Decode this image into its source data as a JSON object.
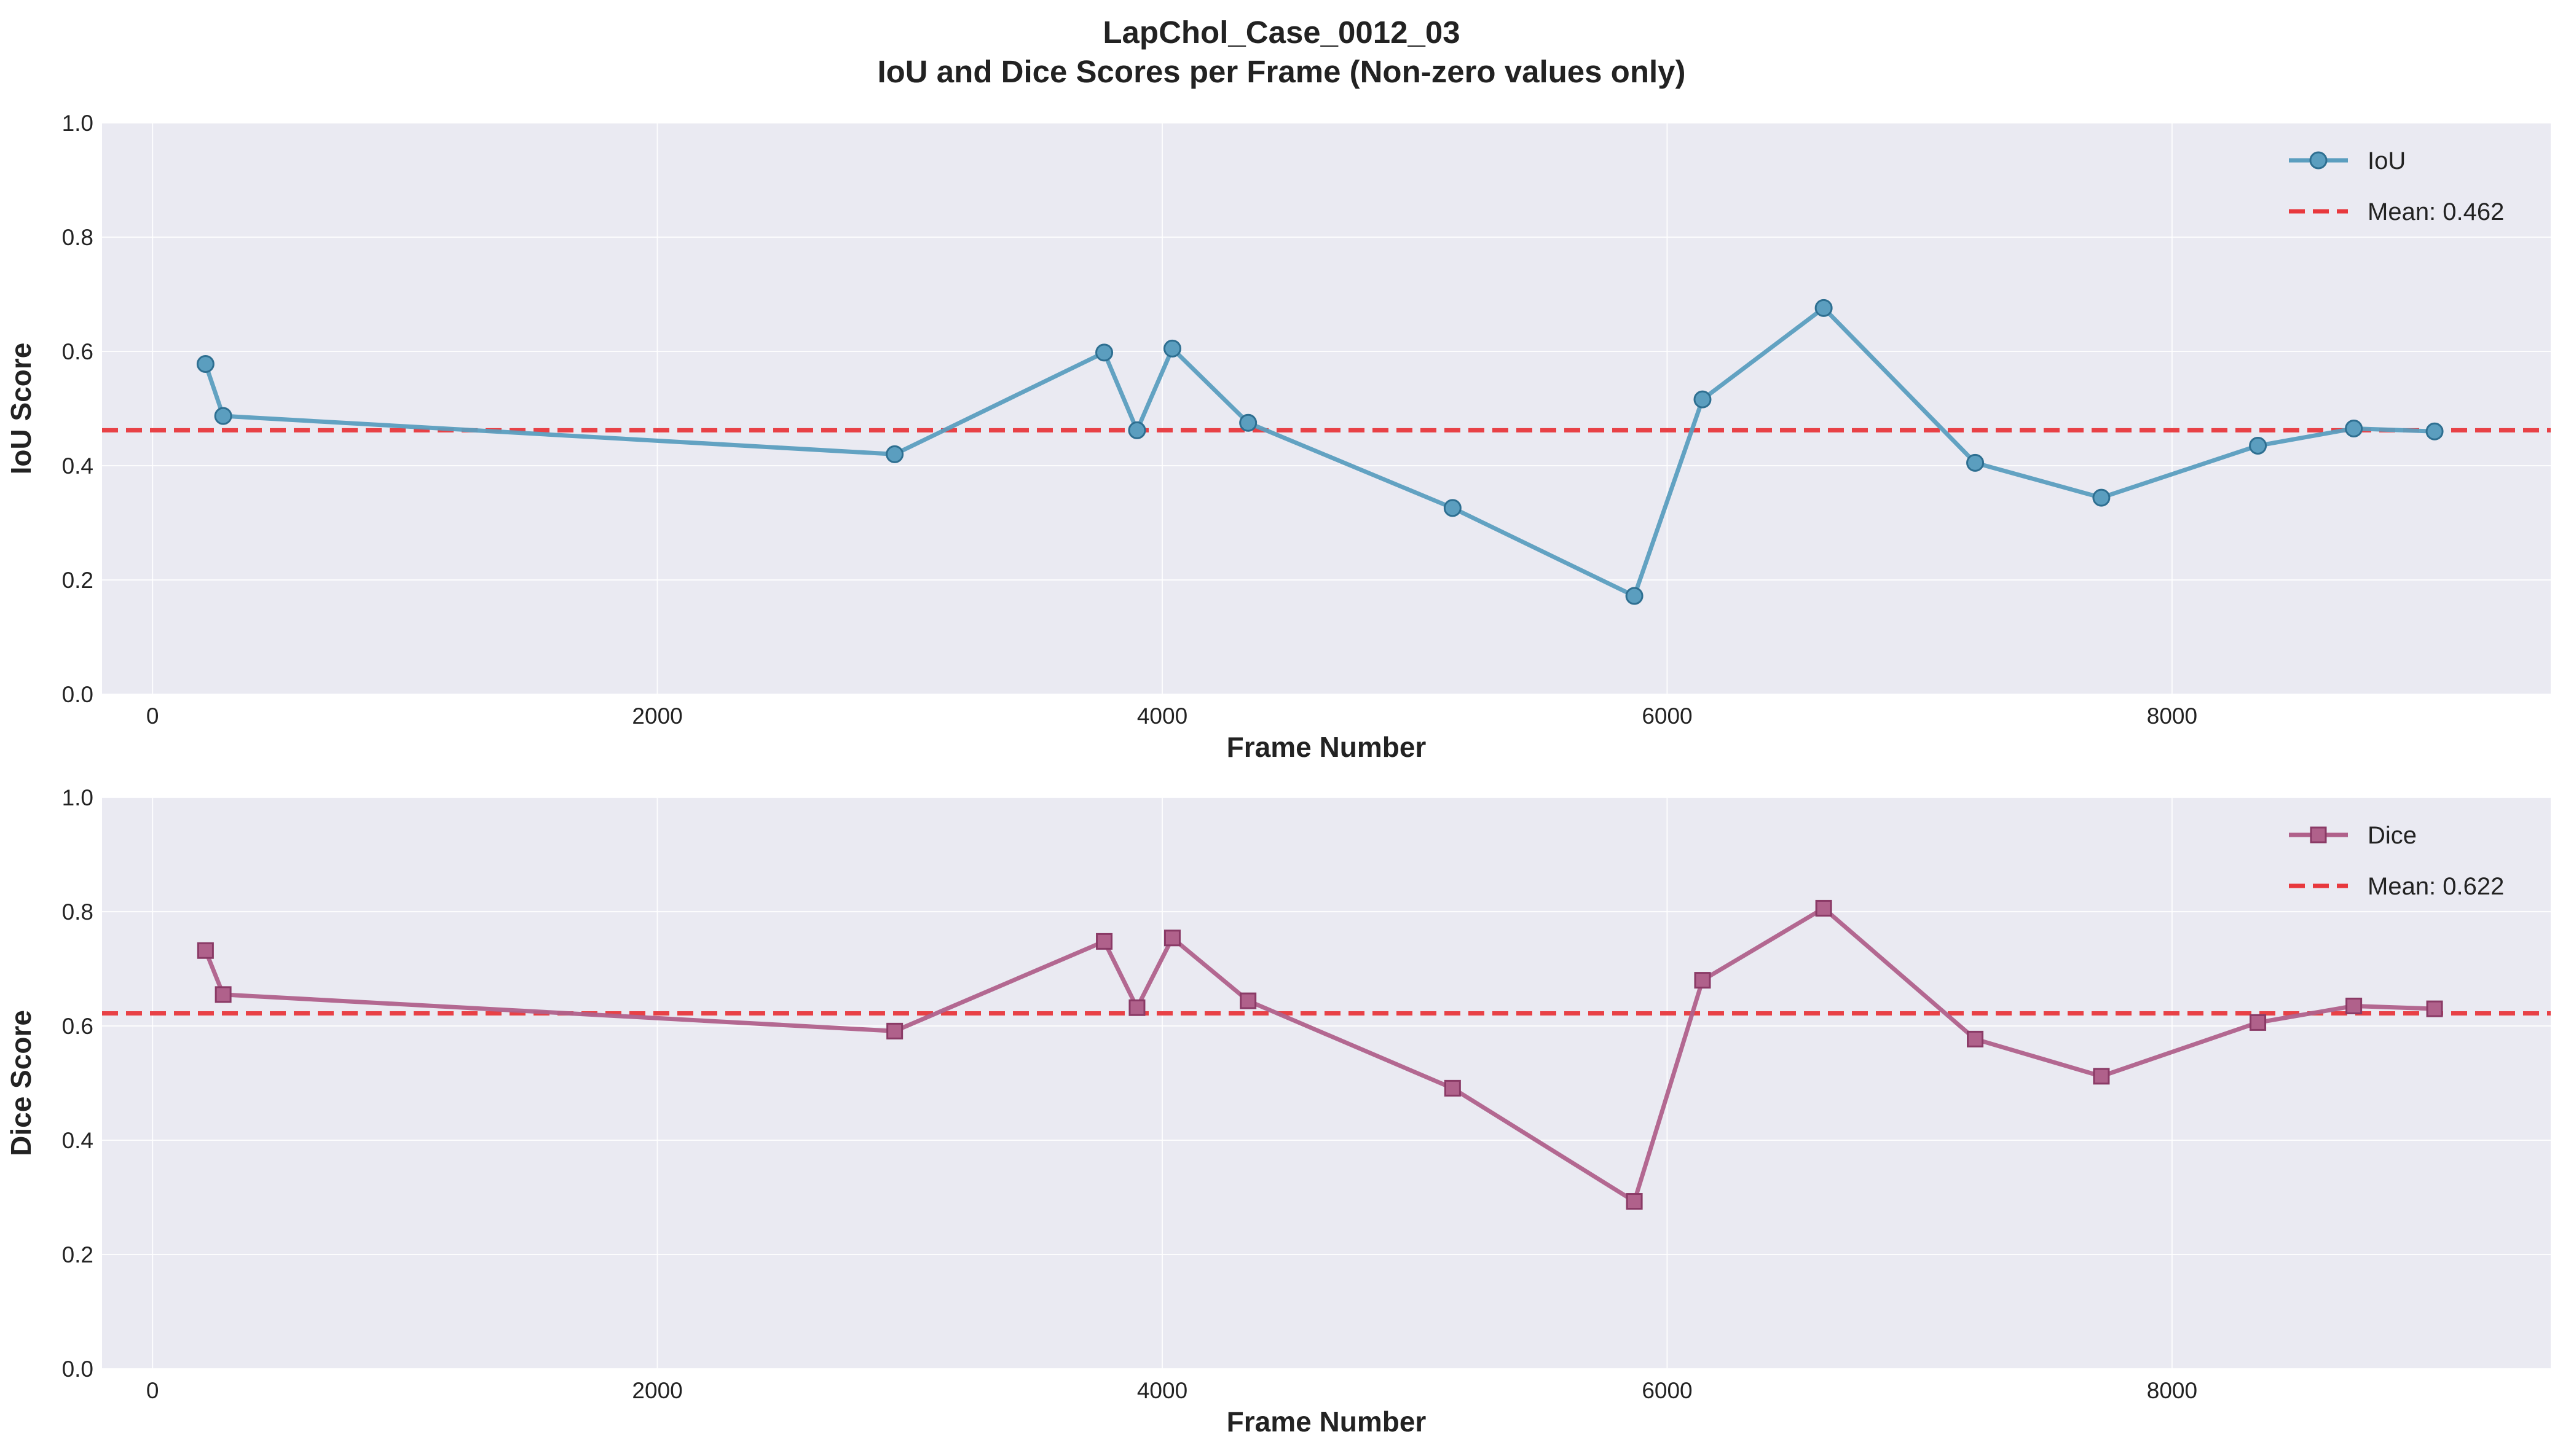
{
  "figure": {
    "title_line1": "LapChol_Case_0012_03",
    "title_line2": "IoU and Dice Scores per Frame (Non-zero values only)"
  },
  "colors": {
    "background": "#eaeaf2",
    "grid": "#ffffff",
    "iou_line": "#5b9ebf",
    "iou_marker_edge": "#2e6f91",
    "dice_line": "#b0618b",
    "dice_marker_edge": "#8a3a66",
    "mean_line": "#e8383d"
  },
  "chart_data": [
    {
      "type": "line",
      "id": "iou",
      "marker": "circle",
      "xlabel": "Frame Number",
      "ylabel": "IoU Score",
      "xlim": [
        -200,
        9500
      ],
      "ylim": [
        0,
        1.0
      ],
      "xticks": [
        0,
        2000,
        4000,
        6000,
        8000
      ],
      "yticks": [
        0.0,
        0.2,
        0.4,
        0.6,
        0.8,
        1.0
      ],
      "ytick_labels": [
        "0.0",
        "0.2",
        "0.4",
        "0.6",
        "0.8",
        "1.0"
      ],
      "grid": true,
      "legend_position": "upper right",
      "series": [
        {
          "name": "IoU",
          "x": [
            210,
            280,
            2940,
            3770,
            3900,
            4040,
            4340,
            5150,
            5870,
            6140,
            6620,
            7220,
            7720,
            8340,
            8720,
            9040
          ],
          "y": [
            0.578,
            0.487,
            0.42,
            0.598,
            0.462,
            0.605,
            0.475,
            0.326,
            0.172,
            0.516,
            0.676,
            0.405,
            0.344,
            0.435,
            0.465,
            0.46
          ]
        }
      ],
      "mean": {
        "value": 0.462,
        "label": "Mean: 0.462"
      }
    },
    {
      "type": "line",
      "id": "dice",
      "marker": "square",
      "xlabel": "Frame Number",
      "ylabel": "Dice Score",
      "xlim": [
        -200,
        9500
      ],
      "ylim": [
        0,
        1.0
      ],
      "xticks": [
        0,
        2000,
        4000,
        6000,
        8000
      ],
      "yticks": [
        0.0,
        0.2,
        0.4,
        0.6,
        0.8,
        1.0
      ],
      "ytick_labels": [
        "0.0",
        "0.2",
        "0.4",
        "0.6",
        "0.8",
        "1.0"
      ],
      "grid": true,
      "legend_position": "upper right",
      "series": [
        {
          "name": "Dice",
          "x": [
            210,
            280,
            2940,
            3770,
            3900,
            4040,
            4340,
            5150,
            5870,
            6140,
            6620,
            7220,
            7720,
            8340,
            8720,
            9040
          ],
          "y": [
            0.732,
            0.655,
            0.591,
            0.748,
            0.632,
            0.754,
            0.644,
            0.491,
            0.293,
            0.68,
            0.806,
            0.577,
            0.512,
            0.606,
            0.635,
            0.63
          ]
        }
      ],
      "mean": {
        "value": 0.622,
        "label": "Mean: 0.622"
      }
    }
  ]
}
